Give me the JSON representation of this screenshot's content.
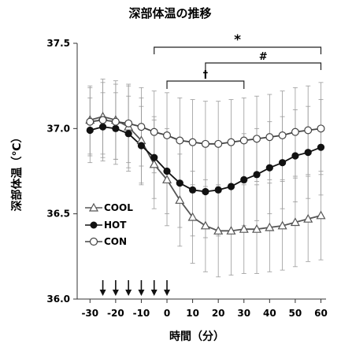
{
  "chart_data": {
    "type": "line",
    "title": "深部体温の推移",
    "xlabel": "時間（分）",
    "ylabel": "深部体温（℃）",
    "xlim": [
      -35,
      62
    ],
    "ylim": [
      36.0,
      37.5
    ],
    "x_ticks": [
      -30,
      -20,
      -10,
      0,
      10,
      20,
      30,
      40,
      50,
      60
    ],
    "x_tick_labels": [
      "-30",
      "-20",
      "-10",
      "0",
      "10",
      "20",
      "30",
      "40",
      "50",
      "60"
    ],
    "y_ticks": [
      36.0,
      36.5,
      37.0,
      37.5
    ],
    "y_tick_labels": [
      "36.0",
      "36.5",
      "37.0",
      "37.5"
    ],
    "legend_position": "left-middle",
    "x": [
      -30,
      -25,
      -20,
      -15,
      -10,
      -5,
      0,
      5,
      10,
      15,
      20,
      25,
      30,
      35,
      40,
      45,
      50,
      55,
      60
    ],
    "series": [
      {
        "name": "COOL",
        "marker": "triangle-open",
        "color": "#555555",
        "values": [
          37.05,
          37.07,
          37.05,
          37.01,
          36.93,
          36.79,
          36.7,
          36.58,
          36.48,
          36.43,
          36.4,
          36.4,
          36.41,
          36.41,
          36.42,
          36.43,
          36.45,
          36.47,
          36.49
        ],
        "error": [
          0.2,
          0.22,
          0.23,
          0.24,
          0.25,
          0.26,
          0.27,
          0.27,
          0.27,
          0.27,
          0.27,
          0.26,
          0.26,
          0.26,
          0.26,
          0.26,
          0.26,
          0.25,
          0.26
        ]
      },
      {
        "name": "HOT",
        "marker": "circle-filled",
        "color": "#111111",
        "values": [
          36.99,
          37.01,
          37.0,
          36.97,
          36.9,
          36.83,
          36.75,
          36.68,
          36.64,
          36.63,
          36.64,
          36.66,
          36.7,
          36.73,
          36.77,
          36.8,
          36.84,
          36.86,
          36.89
        ],
        "error": [
          0.19,
          0.2,
          0.21,
          0.22,
          0.23,
          0.24,
          0.25,
          0.26,
          0.27,
          0.27,
          0.27,
          0.27,
          0.27,
          0.27,
          0.27,
          0.27,
          0.27,
          0.27,
          0.28
        ]
      },
      {
        "name": "CON",
        "marker": "circle-open",
        "color": "#444444",
        "values": [
          37.04,
          37.05,
          37.04,
          37.03,
          37.01,
          36.98,
          36.96,
          36.93,
          36.92,
          36.91,
          36.91,
          36.92,
          36.93,
          36.94,
          36.95,
          36.96,
          36.98,
          36.99,
          37.0
        ],
        "error": [
          0.2,
          0.22,
          0.22,
          0.23,
          0.23,
          0.24,
          0.25,
          0.25,
          0.25,
          0.25,
          0.25,
          0.25,
          0.25,
          0.25,
          0.25,
          0.26,
          0.26,
          0.26,
          0.27
        ]
      }
    ],
    "arrows_x": [
      -25,
      -20,
      -15,
      -10,
      -5,
      0
    ],
    "significance_brackets": [
      {
        "label": "*",
        "x_start": -5,
        "x_end": 60
      },
      {
        "label": "#",
        "x_start": 15,
        "x_end": 60
      },
      {
        "label": "†",
        "x_start": 0,
        "x_end": 30
      }
    ]
  }
}
